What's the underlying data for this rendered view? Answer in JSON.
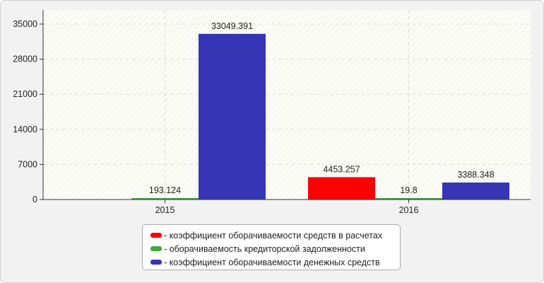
{
  "chart_data": {
    "type": "bar",
    "categories": [
      "2015",
      "2016"
    ],
    "series": [
      {
        "name": "- коэффициент оборачиваемости средств в расчетах",
        "color": "#ff0000",
        "values": [
          null,
          4453.257
        ],
        "labels": [
          "",
          "4453.257"
        ]
      },
      {
        "name": "- оборачиваемость кредиторской задолженности",
        "color": "#3caa3c",
        "values": [
          193.124,
          19.8
        ],
        "labels": [
          "193.124",
          "19.8"
        ]
      },
      {
        "name": "- коэффициент оборачиваемости денежных средств",
        "color": "#3636b4",
        "values": [
          33049.391,
          3388.348
        ],
        "labels": [
          "33049.391",
          "3388.348"
        ]
      }
    ],
    "y_ticks": [
      0,
      7000,
      14000,
      21000,
      28000,
      35000
    ],
    "y_tick_labels": [
      "0",
      "7000",
      "14000",
      "21000",
      "28000",
      "35000"
    ],
    "ylim": [
      0,
      35000
    ],
    "grid": true,
    "legend_position": "bottom-center"
  }
}
